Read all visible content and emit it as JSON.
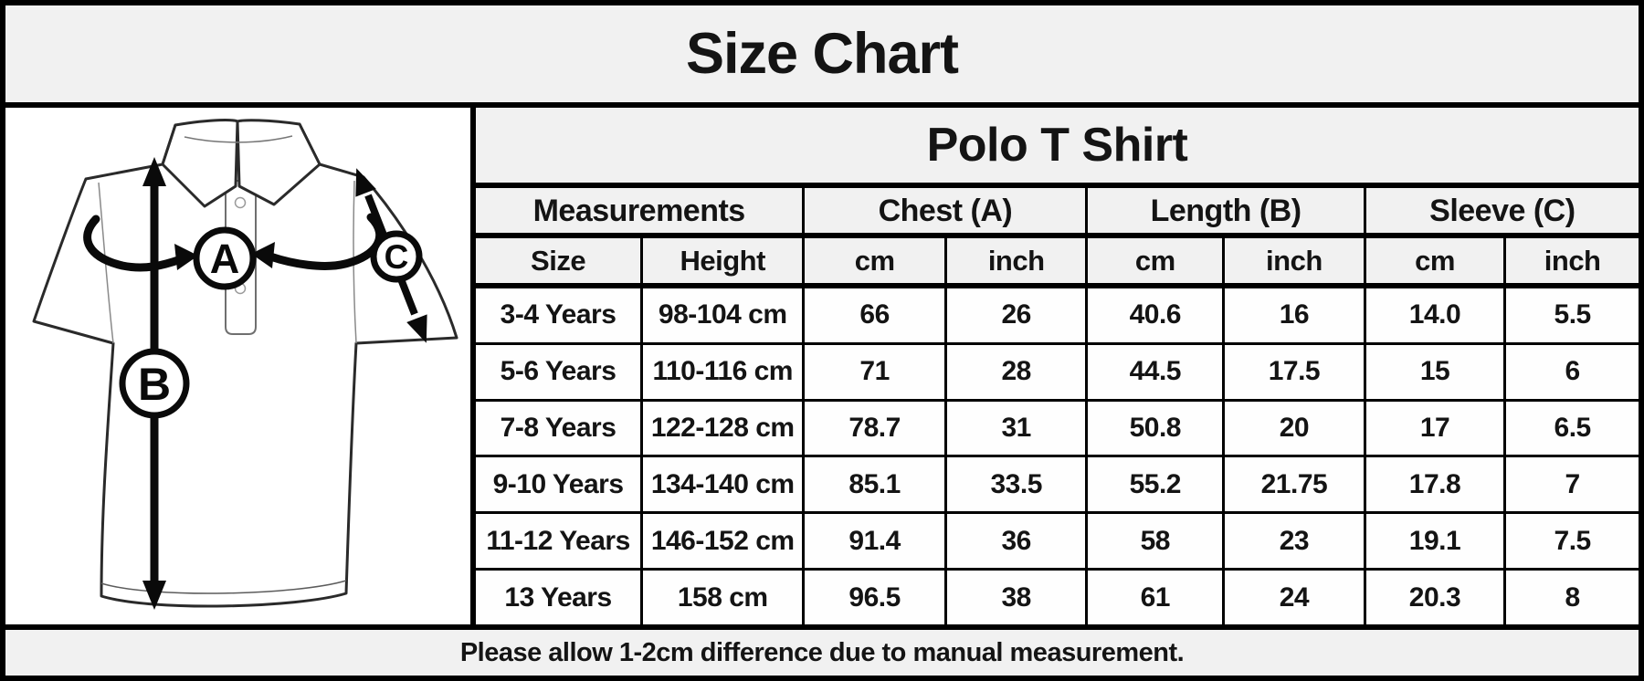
{
  "title": "Size Chart",
  "product_header": "Polo T Shirt",
  "note": "Please allow 1-2cm difference due to manual measurement.",
  "diagram": {
    "description": "polo-shirt-measurement-diagram",
    "marker_a": "A",
    "marker_b": "B",
    "marker_c": "C"
  },
  "table": {
    "groups": [
      {
        "label": "Measurements"
      },
      {
        "label": "Chest (A)"
      },
      {
        "label": "Length (B)"
      },
      {
        "label": "Sleeve (C)"
      }
    ],
    "columns": [
      "Size",
      "Height",
      "cm",
      "inch",
      "cm",
      "inch",
      "cm",
      "inch"
    ],
    "rows": [
      [
        "3-4 Years",
        "98-104 cm",
        "66",
        "26",
        "40.6",
        "16",
        "14.0",
        "5.5"
      ],
      [
        "5-6 Years",
        "110-116 cm",
        "71",
        "28",
        "44.5",
        "17.5",
        "15",
        "6"
      ],
      [
        "7-8 Years",
        "122-128 cm",
        "78.7",
        "31",
        "50.8",
        "20",
        "17",
        "6.5"
      ],
      [
        "9-10 Years",
        "134-140 cm",
        "85.1",
        "33.5",
        "55.2",
        "21.75",
        "17.8",
        "7"
      ],
      [
        "11-12 Years",
        "146-152 cm",
        "91.4",
        "36",
        "58",
        "23",
        "19.1",
        "7.5"
      ],
      [
        "13 Years",
        "158 cm",
        "96.5",
        "38",
        "61",
        "24",
        "20.3",
        "8"
      ]
    ]
  },
  "chart_data": {
    "type": "table",
    "title": "Size Chart",
    "subtitle": "Polo T Shirt",
    "column_groups": [
      "Measurements",
      "Chest (A)",
      "Length (B)",
      "Sleeve (C)"
    ],
    "columns": [
      "Size",
      "Height",
      "Chest cm",
      "Chest inch",
      "Length cm",
      "Length inch",
      "Sleeve cm",
      "Sleeve inch"
    ],
    "rows": [
      [
        "3-4 Years",
        "98-104 cm",
        66,
        26,
        40.6,
        16,
        14.0,
        5.5
      ],
      [
        "5-6 Years",
        "110-116 cm",
        71,
        28,
        44.5,
        17.5,
        15,
        6
      ],
      [
        "7-8 Years",
        "122-128 cm",
        78.7,
        31,
        50.8,
        20,
        17,
        6.5
      ],
      [
        "9-10 Years",
        "134-140 cm",
        85.1,
        33.5,
        55.2,
        21.75,
        17.8,
        7
      ],
      [
        "11-12 Years",
        "146-152 cm",
        91.4,
        36,
        58,
        23,
        19.1,
        7.5
      ],
      [
        "13 Years",
        "158 cm",
        96.5,
        38,
        61,
        24,
        20.3,
        8
      ]
    ],
    "note": "Please allow 1-2cm difference due to manual measurement."
  },
  "colors": {
    "band_fill": "#f1f1f1",
    "cell_fill": "#fefefe",
    "border": "#000000",
    "text": "#141414"
  }
}
